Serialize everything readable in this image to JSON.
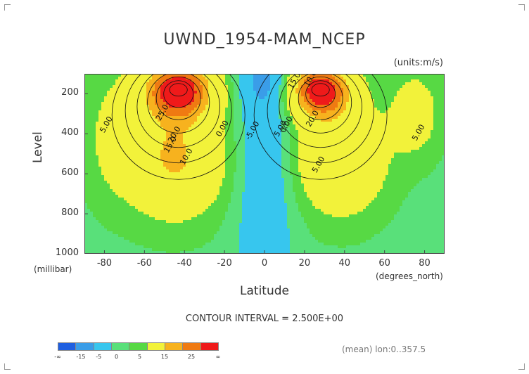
{
  "chart_data": {
    "type": "heatmap",
    "title": "UWND_1954-MAM_NCEP",
    "units_label": "(units:m/s)",
    "xlabel": "Latitude",
    "ylabel": "Level",
    "x_unit_label": "(degrees_north)",
    "y_unit_label": "(millibar)",
    "xlim": [
      -90,
      90
    ],
    "ylim": [
      1000,
      100
    ],
    "x_ticks": [
      -80,
      -60,
      -40,
      -20,
      0,
      20,
      40,
      60,
      80
    ],
    "y_ticks": [
      200,
      400,
      600,
      800,
      1000
    ],
    "contour_interval_text": "CONTOUR INTERVAL = 2.500E+00",
    "contour_labels": [
      "5.00",
      "10.0",
      "15.0",
      "20.0",
      "25.0",
      "0.00",
      "-5.00",
      "5.00",
      "0.00",
      "10.0",
      "15.0",
      "20.0",
      "5.00",
      "5.00"
    ],
    "colorbar": {
      "labels": [
        "-∞",
        "-15",
        "-5",
        "0",
        "5",
        "15",
        "25",
        "∞"
      ],
      "colors": [
        "#1f5fe0",
        "#3a9de8",
        "#37c6ee",
        "#59e07a",
        "#57d944",
        "#f2f23a",
        "#f7b21e",
        "#ef7a12",
        "#ef1a1a"
      ]
    },
    "jets": [
      {
        "name": "southern",
        "lat": -43,
        "level": 180,
        "max_speed": 27
      },
      {
        "name": "northern",
        "lat": 28,
        "level": 180,
        "max_speed": 27
      }
    ],
    "footer_note": "(mean) lon:0..357.5"
  }
}
